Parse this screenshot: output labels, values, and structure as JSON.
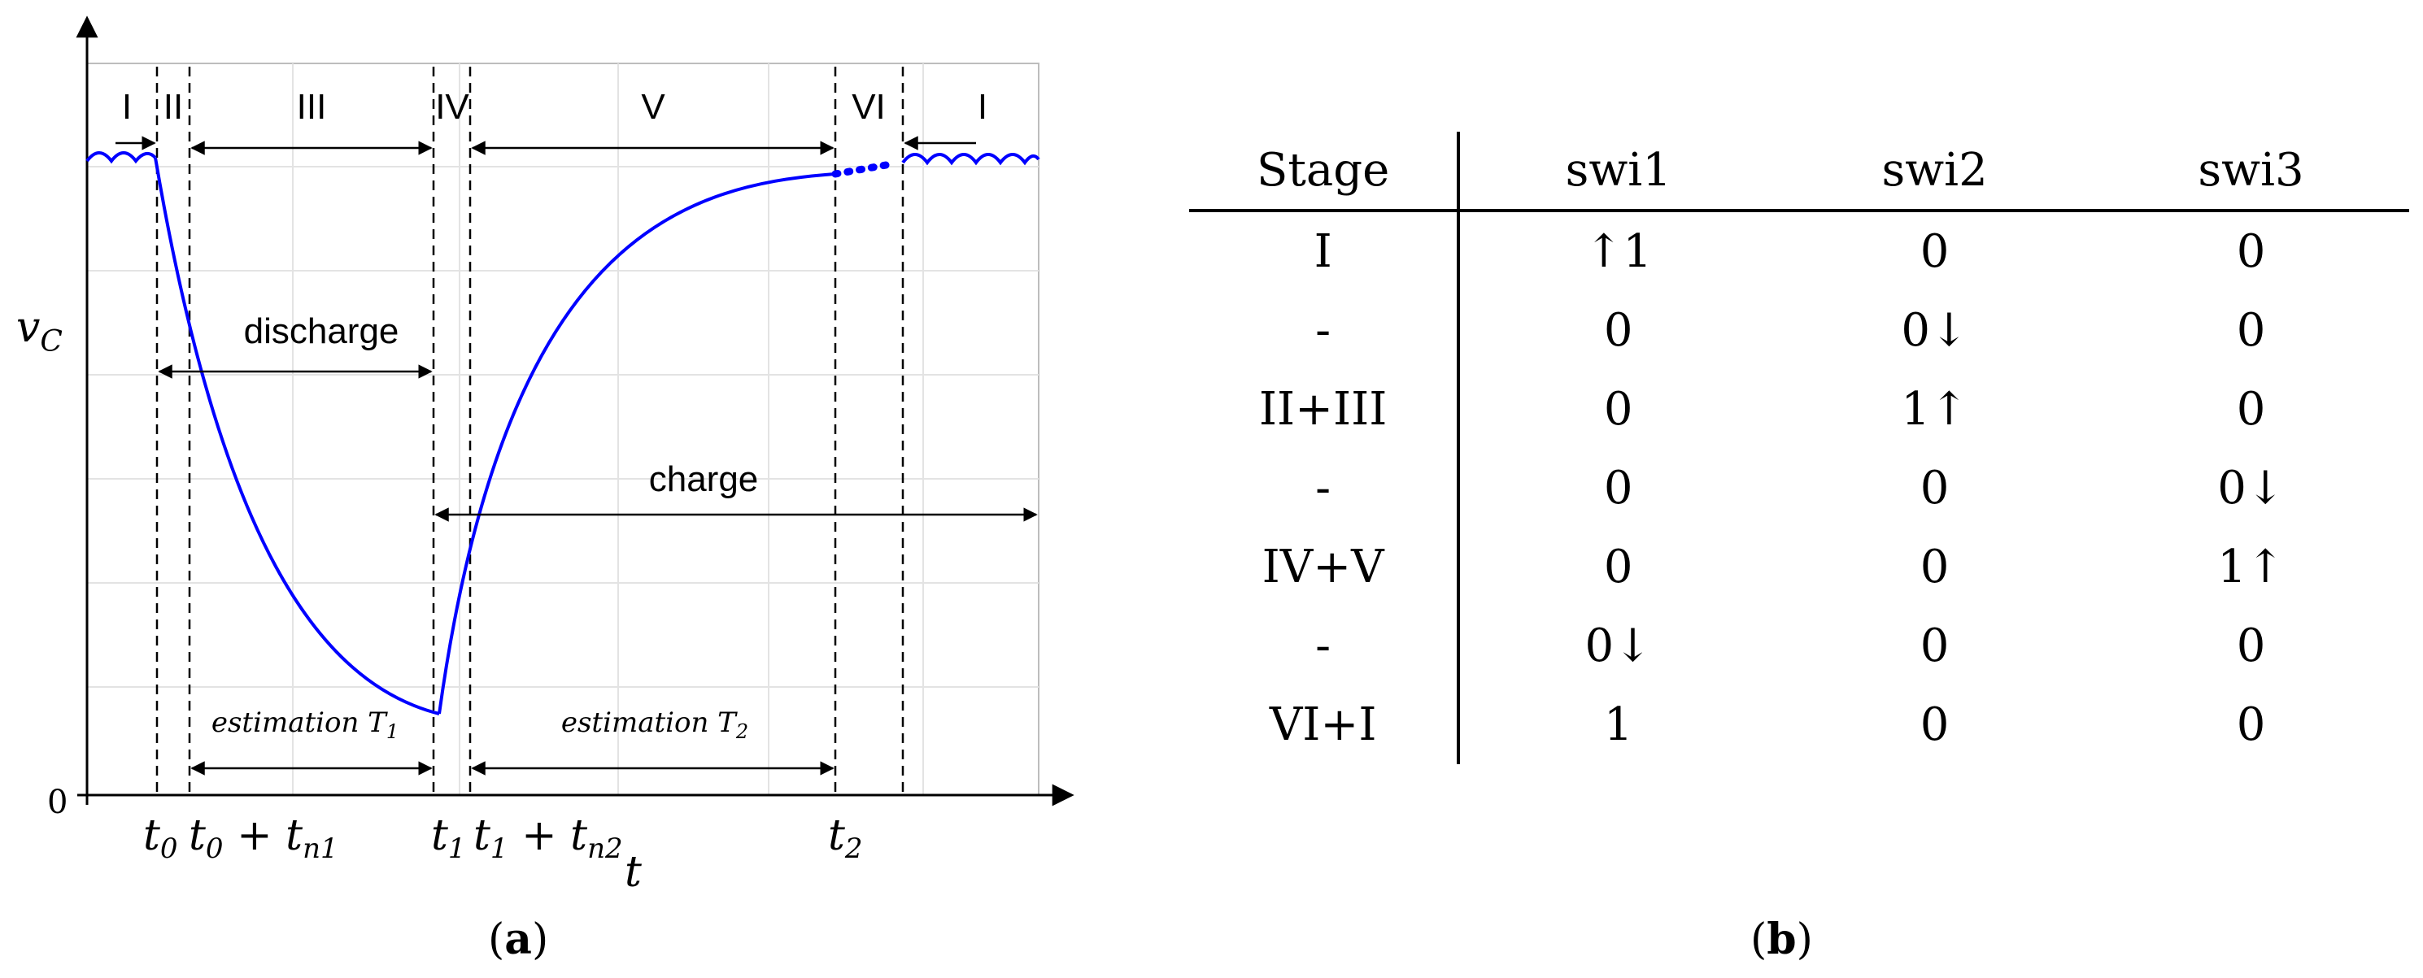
{
  "figure_a": {
    "y_axis_label": "v",
    "y_axis_sub": "C",
    "x_axis_label": "t",
    "origin_label": "0",
    "stage_labels": [
      "I",
      "II",
      "III",
      "IV",
      "V",
      "VI",
      "I"
    ],
    "annotations": {
      "discharge": "discharge",
      "charge": "charge",
      "estimation_t1": "estimation T",
      "estimation_t1_sub": "1",
      "estimation_t2": "estimation T",
      "estimation_t2_sub": "2"
    },
    "time_labels": {
      "t0": "t",
      "t0_sub": "0",
      "t0n1": "t",
      "t0n1_sub": "0",
      "t0n1_rest": " + t",
      "t0n1_rest_sub": "n1",
      "t1": "t",
      "t1_sub": "1",
      "t1n2": "t",
      "t1n2_sub": "1",
      "t1n2_rest": " + t",
      "t1n2_rest_sub": "n2",
      "t2": "t",
      "t2_sub": "2"
    },
    "curve_color": "#0000ff",
    "caption_letter": "a"
  },
  "figure_b": {
    "headers": [
      "Stage",
      "swi1",
      "swi2",
      "swi3"
    ],
    "rows": [
      [
        "I",
        "↑1",
        "0",
        "0"
      ],
      [
        "-",
        "0",
        "0↓",
        "0"
      ],
      [
        "II+III",
        "0",
        "1↑",
        "0"
      ],
      [
        "-",
        "0",
        "0",
        "0↓"
      ],
      [
        "IV+V",
        "0",
        "0",
        "1↑"
      ],
      [
        "-",
        "0↓",
        "0",
        "0"
      ],
      [
        "VI+I",
        "1",
        "0",
        "0"
      ]
    ],
    "caption_letter": "b"
  }
}
